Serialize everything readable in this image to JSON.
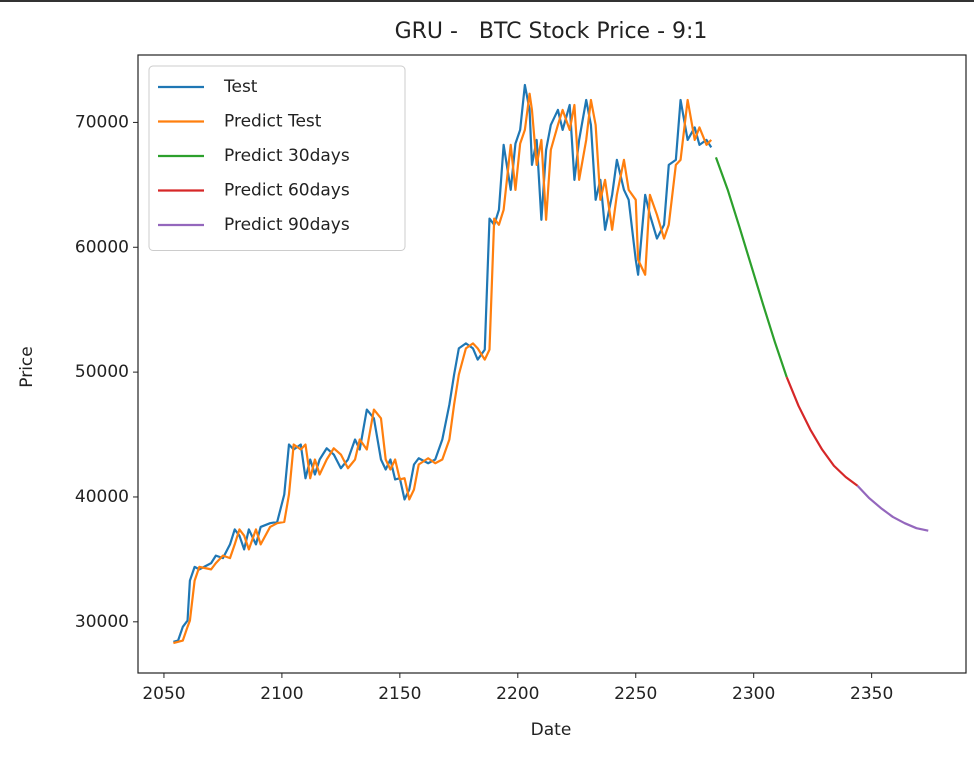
{
  "chart_data": {
    "type": "line",
    "title": "GRU -   BTC Stock Price - 9:1",
    "x_label": "Date",
    "y_label": "Price",
    "xlim": [
      2039,
      2390
    ],
    "ylim": [
      25900,
      75400
    ],
    "xticks": [
      2050,
      2100,
      2150,
      2200,
      2250,
      2300,
      2350
    ],
    "yticks": [
      30000,
      40000,
      50000,
      60000,
      70000
    ],
    "grid": false,
    "legend": "upper left",
    "series": [
      {
        "name": "Test",
        "color": "#1f77b4",
        "x": [
          2054,
          2056,
          2058,
          2060,
          2061,
          2063,
          2065,
          2070,
          2072,
          2075,
          2078,
          2080,
          2082,
          2084,
          2086,
          2089,
          2091,
          2095,
          2098,
          2101,
          2103,
          2105,
          2108,
          2110,
          2112,
          2114,
          2116,
          2119,
          2122,
          2125,
          2128,
          2131,
          2133,
          2136,
          2139,
          2142,
          2144,
          2146,
          2148,
          2150,
          2152,
          2154,
          2156,
          2158,
          2162,
          2165,
          2168,
          2171,
          2173,
          2175,
          2178,
          2181,
          2183,
          2186,
          2188,
          2190,
          2192,
          2194,
          2197,
          2199,
          2201,
          2203,
          2205,
          2206,
          2208,
          2210,
          2212,
          2214,
          2217,
          2219,
          2222,
          2224,
          2226,
          2229,
          2231,
          2233,
          2235,
          2237,
          2240,
          2242,
          2245,
          2247,
          2250,
          2251,
          2254,
          2256,
          2259,
          2262,
          2264,
          2267,
          2269,
          2272,
          2275,
          2277,
          2280,
          2282
        ],
        "values": [
          28400,
          28500,
          29600,
          30100,
          33300,
          34400,
          34200,
          34700,
          35300,
          35100,
          36200,
          37400,
          36900,
          35800,
          37400,
          36200,
          37600,
          37900,
          38000,
          40200,
          44200,
          43800,
          44200,
          41500,
          43000,
          41800,
          43000,
          43900,
          43400,
          42300,
          43000,
          44600,
          43800,
          47000,
          46300,
          43000,
          42200,
          43000,
          41400,
          41500,
          39800,
          40600,
          42600,
          43100,
          42700,
          43000,
          44600,
          47400,
          49800,
          51900,
          52300,
          51900,
          51000,
          51800,
          62300,
          61800,
          63000,
          68200,
          64600,
          68300,
          69400,
          73000,
          71000,
          66600,
          68600,
          62200,
          67800,
          69800,
          71000,
          69400,
          71400,
          65400,
          68600,
          71800,
          69800,
          63800,
          65400,
          61400,
          64200,
          67000,
          64600,
          63800,
          59000,
          57800,
          64200,
          62600,
          60700,
          61800,
          66600,
          67000,
          71800,
          68600,
          69600,
          68200,
          68600,
          68000
        ]
      },
      {
        "name": "Predict Test",
        "color": "#ff7f0e",
        "x": [
          2054,
          2056,
          2058,
          2060,
          2061,
          2063,
          2065,
          2070,
          2072,
          2075,
          2078,
          2080,
          2082,
          2084,
          2086,
          2089,
          2091,
          2095,
          2098,
          2101,
          2103,
          2105,
          2108,
          2110,
          2112,
          2114,
          2116,
          2119,
          2122,
          2125,
          2128,
          2131,
          2133,
          2136,
          2139,
          2142,
          2144,
          2146,
          2148,
          2150,
          2152,
          2154,
          2156,
          2158,
          2162,
          2165,
          2168,
          2171,
          2173,
          2175,
          2178,
          2181,
          2183,
          2186,
          2188,
          2190,
          2192,
          2194,
          2197,
          2199,
          2201,
          2203,
          2205,
          2206,
          2208,
          2210,
          2212,
          2214,
          2217,
          2219,
          2222,
          2224,
          2226,
          2229,
          2231,
          2233,
          2235,
          2237,
          2240,
          2242,
          2245,
          2247,
          2250,
          2251,
          2254,
          2256,
          2259,
          2262,
          2264,
          2267,
          2269,
          2272,
          2275,
          2277,
          2280,
          2282
        ],
        "values": [
          28300,
          28400,
          28500,
          29600,
          30100,
          33300,
          34400,
          34200,
          34700,
          35300,
          35100,
          36200,
          37400,
          36900,
          35800,
          37400,
          36200,
          37600,
          37900,
          38000,
          40200,
          44200,
          43800,
          44200,
          41500,
          43000,
          41800,
          43000,
          43900,
          43400,
          42300,
          43000,
          44600,
          43800,
          47000,
          46300,
          43000,
          42200,
          43000,
          41400,
          41500,
          39800,
          40600,
          42600,
          43100,
          42700,
          43000,
          44600,
          47400,
          49800,
          51900,
          52300,
          51900,
          51000,
          51800,
          62300,
          61800,
          63000,
          68200,
          64600,
          68300,
          69400,
          72300,
          71000,
          66600,
          68600,
          62200,
          67800,
          69800,
          71000,
          69400,
          71400,
          65400,
          68600,
          71800,
          69800,
          63800,
          65400,
          61400,
          64200,
          67000,
          64600,
          63800,
          59000,
          57800,
          64200,
          62600,
          60700,
          61800,
          66600,
          67000,
          71800,
          68600,
          69600,
          68200,
          68600
        ]
      },
      {
        "name": "Predict 30days",
        "color": "#2ca02c",
        "x": [
          2284,
          2289,
          2294,
          2299,
          2304,
          2309,
          2314
        ],
        "values": [
          67200,
          64600,
          61600,
          58500,
          55400,
          52400,
          49600
        ]
      },
      {
        "name": "Predict 60days",
        "color": "#d62728",
        "x": [
          2314,
          2319,
          2324,
          2329,
          2334,
          2339,
          2344
        ],
        "values": [
          49600,
          47300,
          45400,
          43800,
          42500,
          41600,
          40900
        ]
      },
      {
        "name": "Predict 90days",
        "color": "#9467bd",
        "x": [
          2344,
          2349,
          2354,
          2359,
          2364,
          2369,
          2374
        ],
        "values": [
          40900,
          39900,
          39100,
          38400,
          37900,
          37500,
          37300
        ]
      }
    ]
  }
}
